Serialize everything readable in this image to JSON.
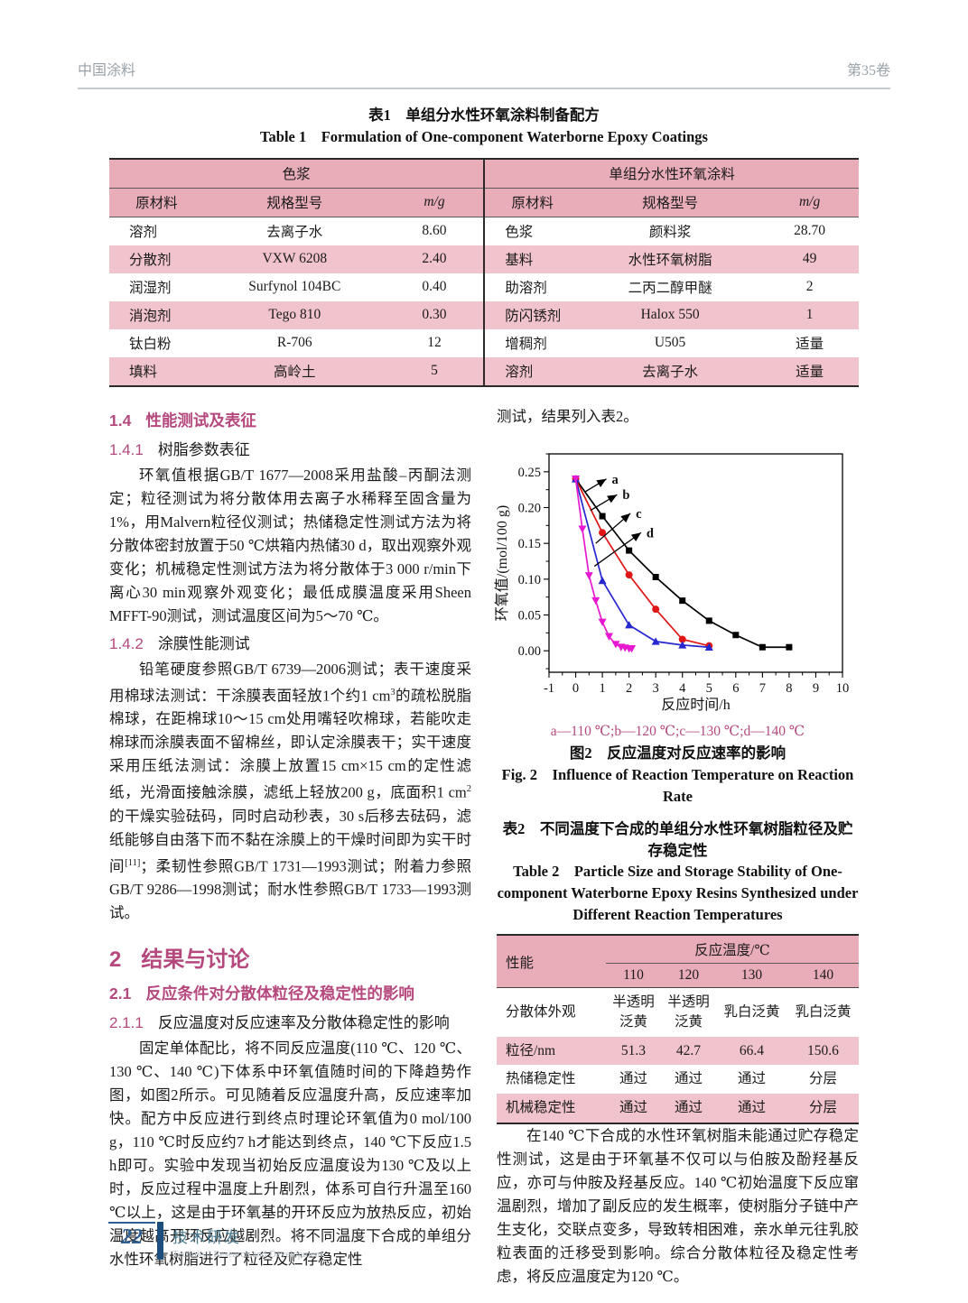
{
  "header": {
    "journal": "中国涂料",
    "volume": "第35卷"
  },
  "table1": {
    "caption_cn": "表1　单组分水性环氧涂料制备配方",
    "caption_en": "Table 1　Formulation of One-component Waterborne Epoxy Coatings",
    "group_headers": [
      "色浆",
      "单组分水性环氧涂料"
    ],
    "col_headers": [
      "原材料",
      "规格型号",
      "m/g"
    ],
    "left_rows": [
      [
        "溶剂",
        "去离子水",
        "8.60"
      ],
      [
        "分散剂",
        "VXW 6208",
        "2.40"
      ],
      [
        "润湿剂",
        "Surfynol 104BC",
        "0.40"
      ],
      [
        "消泡剂",
        "Tego 810",
        "0.30"
      ],
      [
        "钛白粉",
        "R-706",
        "12"
      ],
      [
        "填料",
        "高岭土",
        "5"
      ]
    ],
    "right_rows": [
      [
        "色浆",
        "颜料浆",
        "28.70"
      ],
      [
        "基料",
        "水性环氧树脂",
        "49"
      ],
      [
        "助溶剂",
        "二丙二醇甲醚",
        "2"
      ],
      [
        "防闪锈剂",
        "Halox 550",
        "1"
      ],
      [
        "增稠剂",
        "U505",
        "适量"
      ],
      [
        "溶剂",
        "去离子水",
        "适量"
      ]
    ]
  },
  "sections": {
    "s14": {
      "num": "1.4",
      "title": "性能测试及表征"
    },
    "s141": {
      "num": "1.4.1",
      "title": "树脂参数表征"
    },
    "p141": "环氧值根据GB/T 1677—2008采用盐酸–丙酮法测定；粒径测试为将分散体用去离子水稀释至固含量为1%，用Malvern粒径仪测试；热储稳定性测试方法为将分散体密封放置于50 ℃烘箱内热储30 d，取出观察外观变化；机械稳定性测试方法为将分散体于3 000 r/min下离心30 min观察外观变化；最低成膜温度采用Sheen MFFT-90测试，测试温度区间为5～70 ℃。",
    "s142": {
      "num": "1.4.2",
      "title": "涂膜性能测试"
    },
    "p142_rich": [
      {
        "t": "铅笔硬度参照GB/T 6739—2006测试；表干速度采用棉球法测试：干涂膜表面轻放1个约1 cm"
      },
      {
        "sup": "3"
      },
      {
        "t": "的疏松脱脂棉球，在距棉球10～15 cm处用嘴轻吹棉球，若能吹走棉球而涂膜表面不留棉丝，即认定涂膜表干；实干速度采用压纸法测试：涂膜上放置15 cm×15 cm的定性滤纸，光滑面接触涂膜，滤纸上轻放200 g，底面积1 cm"
      },
      {
        "sup": "2"
      },
      {
        "t": "的干燥实验砝码，同时启动秒表，30 s后移去砝码，滤纸能够自由落下而不黏在涂膜上的干燥时间即为实干时间"
      },
      {
        "sup": "[11]"
      },
      {
        "t": "；柔韧性参照GB/T 1731—1993测试；附着力参照GB/T 9286—1998测试；耐水性参照GB/T 1733—1993测试。"
      }
    ],
    "s2": {
      "num": "2",
      "title": "结果与讨论"
    },
    "s21": {
      "num": "2.1",
      "title": "反应条件对分散体粒径及稳定性的影响"
    },
    "s211": {
      "num": "2.1.1",
      "title": "反应温度对反应速率及分散体稳定性的影响"
    },
    "p211": "固定单体配比，将不同反应温度(110 ℃、120 ℃、130 ℃、140 ℃)下体系中环氧值随时间的下降趋势作图，如图2所示。可见随着反应温度升高，反应速率加快。配方中反应进行到终点时理论环氧值为0 mol/100 g，110 ℃时反应约7 h才能达到终点，140 ℃下反应1.5 h即可。实验中发现当初始反应温度设为130 ℃及以上时，反应过程中温度上升剧烈，体系可自行升温至160 ℃以上，这是由于环氧基的开环反应为放热反应，初始温度越高开环反应越剧烈。将不同温度下合成的单组分水性环氧树脂进行了粒径及贮存稳定性"
  },
  "right": {
    "continuation": "测试，结果列入表2。",
    "discussion": "在140 ℃下合成的水性环氧树脂未能通过贮存稳定性测试，这是由于环氧基不仅可以与伯胺及酚羟基反应，亦可与仲胺及羟基反应。140 ℃初始温度下反应窜温剧烈，增加了副反应的发生概率，使树脂分子链中产生支化，交联点变多，导致转相困难，亲水单元往乳胶粒表面的迁移受到影响。综合分散体粒径及稳定性考虑，将反应温度定为120 ℃。"
  },
  "figure2": {
    "legend_note": "a—110 ℃;b—120 ℃;c—130 ℃;d—140 ℃",
    "caption_cn": "图2　反应温度对反应速率的影响",
    "caption_en": "Fig. 2　Influence of Reaction Temperature on Reaction Rate"
  },
  "chart_data": {
    "type": "line",
    "title": "",
    "xlabel": "反应时间/h",
    "ylabel": "环氧值/(mol/100 g)",
    "xlim": [
      -1,
      10
    ],
    "ylim": [
      -0.03,
      0.275
    ],
    "xticks": [
      -1,
      0,
      1,
      2,
      3,
      4,
      5,
      6,
      7,
      8,
      9,
      10
    ],
    "yticks": [
      0.0,
      0.05,
      0.1,
      0.15,
      0.2,
      0.25
    ],
    "grid": false,
    "legend_position": "annotated letters on plot",
    "series": [
      {
        "name": "a",
        "temperature": "110 ℃",
        "color": "#000000",
        "marker": "square",
        "x": [
          0,
          1,
          2,
          3,
          4,
          5,
          6,
          7,
          8
        ],
        "y": [
          0.24,
          0.188,
          0.14,
          0.103,
          0.07,
          0.042,
          0.022,
          0.005,
          0.005
        ]
      },
      {
        "name": "b",
        "temperature": "120 ℃",
        "color": "#e01616",
        "marker": "circle",
        "x": [
          0,
          1,
          2,
          3,
          4,
          5
        ],
        "y": [
          0.24,
          0.165,
          0.106,
          0.058,
          0.016,
          0.007
        ]
      },
      {
        "name": "c",
        "temperature": "130 ℃",
        "color": "#2727cf",
        "marker": "triangle-up",
        "x": [
          0,
          1,
          2,
          3,
          4,
          5
        ],
        "y": [
          0.24,
          0.098,
          0.036,
          0.013,
          0.008,
          0.005
        ]
      },
      {
        "name": "d",
        "temperature": "140 ℃",
        "color": "#e619d0",
        "marker": "triangle-down",
        "x": [
          0,
          0.25,
          0.5,
          0.75,
          1,
          1.25,
          1.5,
          1.7,
          1.85,
          2,
          2.1
        ],
        "y": [
          0.24,
          0.17,
          0.105,
          0.07,
          0.04,
          0.02,
          0.009,
          0.005,
          0.004,
          0.003,
          0.003
        ]
      }
    ],
    "annotations": [
      {
        "label": "a",
        "from": [
          0.35,
          0.222
        ],
        "to": [
          1.15,
          0.24
        ]
      },
      {
        "label": "b",
        "from": [
          0.55,
          0.196
        ],
        "to": [
          1.55,
          0.218
        ]
      },
      {
        "label": "c",
        "from": [
          0.75,
          0.15
        ],
        "to": [
          2.05,
          0.192
        ]
      },
      {
        "label": "d",
        "from": [
          0.7,
          0.118
        ],
        "to": [
          2.45,
          0.165
        ]
      }
    ]
  },
  "table2": {
    "caption_cn": "表2　不同温度下合成的单组分水性环氧树脂粒径及贮存稳定性",
    "caption_en": "Table 2　Particle Size and Storage Stability of One-component Waterborne Epoxy Resins Synthesized under Different Reaction Temperatures",
    "header_left": "性能",
    "header_group": "反应温度/℃",
    "temps": [
      "110",
      "120",
      "130",
      "140"
    ],
    "rows": [
      {
        "label": "分散体外观",
        "values": [
          "半透明\n泛黄",
          "半透明\n泛黄",
          "乳白泛黄",
          "乳白泛黄"
        ]
      },
      {
        "label": "粒径/nm",
        "values": [
          "51.3",
          "42.7",
          "66.4",
          "150.6"
        ]
      },
      {
        "label": "热储稳定性",
        "values": [
          "通过",
          "通过",
          "通过",
          "分层"
        ]
      },
      {
        "label": "机械稳定性",
        "values": [
          "通过",
          "通过",
          "通过",
          "分层"
        ]
      }
    ]
  },
  "footer": {
    "page_number": "22",
    "section_cn": "技术研发",
    "section_en": "Technical Research and Development"
  }
}
